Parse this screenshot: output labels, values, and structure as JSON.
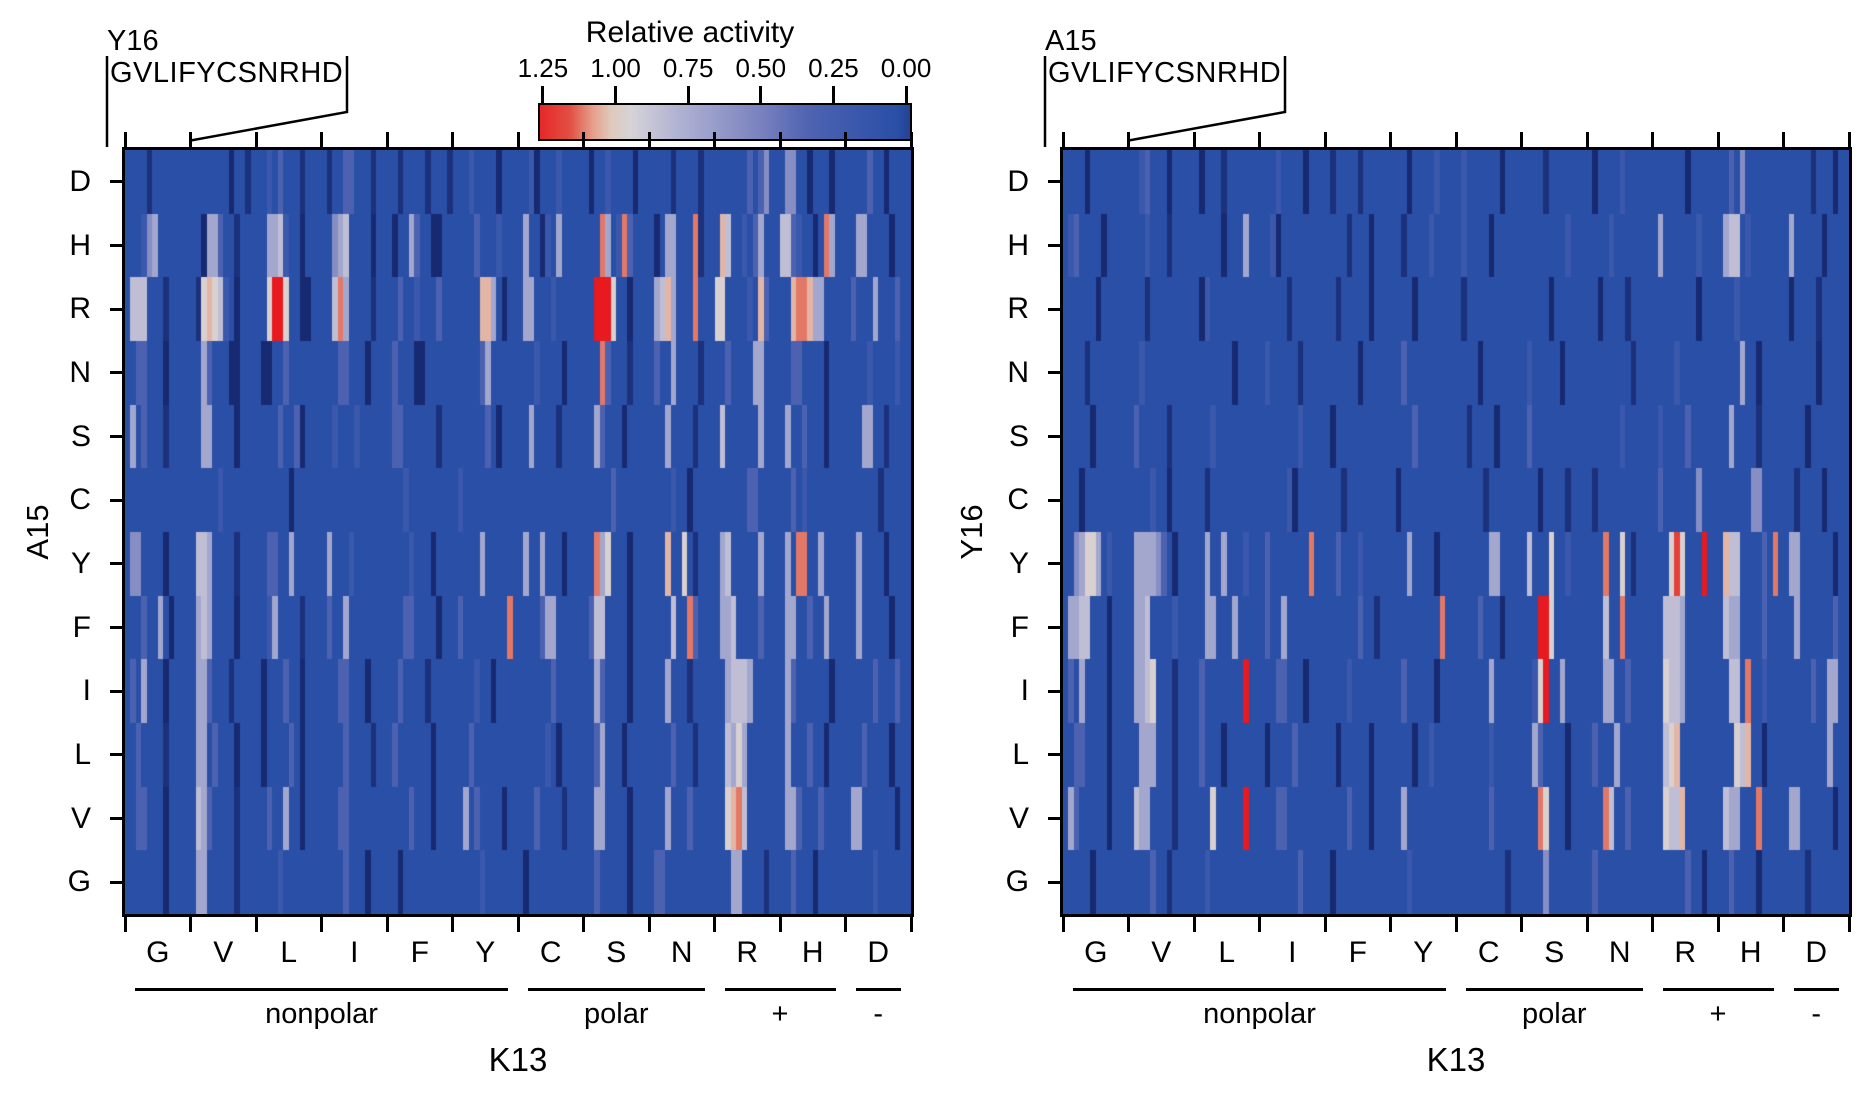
{
  "chart_data": {
    "type": "heatmap",
    "colorbar": {
      "title": "Relative activity",
      "tick_labels": [
        "1.25",
        "1.00",
        "0.75",
        "0.50",
        "0.25",
        "0.00"
      ],
      "tick_values": [
        1.25,
        1.0,
        0.75,
        0.5,
        0.25,
        0.0
      ],
      "orientation": "high-red at left, low-blue at right",
      "range_max": 1.26
    },
    "colormap_stops": [
      [
        -0.2,
        "#16276E"
      ],
      [
        -0.05,
        "#1E3380"
      ],
      [
        0.04,
        "#2A4FA6"
      ],
      [
        0.2,
        "#3C59AD"
      ],
      [
        0.35,
        "#5064B2"
      ],
      [
        0.5,
        "#7880BE"
      ],
      [
        0.65,
        "#959BC9"
      ],
      [
        0.8,
        "#B3B4D4"
      ],
      [
        0.95,
        "#D6D3D8"
      ],
      [
        1.02,
        "#DFC9BC"
      ],
      [
        1.08,
        "#E6A08C"
      ],
      [
        1.16,
        "#E25043"
      ],
      [
        1.3,
        "#E8191F"
      ]
    ],
    "cell_value_code": {
      ".": 0.04,
      "1": -0.18,
      "2": -0.08,
      "3": 0.18,
      "4": 0.32,
      "5": 0.45,
      "6": 0.58,
      "7": 0.72,
      "8": 0.85,
      "9": 0.97,
      "a": 1.05,
      "b": 1.12,
      "c": 1.2,
      "d": 1.3
    },
    "x": {
      "title": "K13",
      "letters": [
        "G",
        "V",
        "L",
        "I",
        "F",
        "Y",
        "C",
        "S",
        "N",
        "R",
        "H",
        "D"
      ],
      "groups": [
        {
          "label": "nonpolar",
          "from_col": 0,
          "to_col": 5
        },
        {
          "label": "polar",
          "from_col": 6,
          "to_col": 8
        },
        {
          "label": "+",
          "from_col": 9,
          "to_col": 10
        },
        {
          "label": "-",
          "from_col": 11,
          "to_col": 11
        }
      ]
    },
    "panels": [
      {
        "y_axis_title": "A15",
        "header": {
          "position_label": "Y16",
          "sequence": "GVLIFYCSNRHD"
        },
        "rows": [
          {
            "letter": "D",
            "blocks": [
              "....2.......",
              ".......1..2.",
              "..3.4...2...",
              ".2..44...2..",
              "..2....2...2",
              "...3....1...",
              "..31...3....",
              ".1..3....1..",
              "....2....2..",
              "......4.46..",
              ".66..1...1..",
              "....4..1...."
            ]
          },
          {
            "letter": "H",
            "blocks": [
              "...367......",
              "..1774..2...",
              "..7783..1...",
              "..678....1..",
              ".1..74..11..",
              "....4...3...",
              ".7..13.7....",
              "...b7.3b4...",
              ".1.77...b2..",
              ".a8..3.47...",
              "8843..1.b7..",
              "..77....1..."
            ]
          },
          {
            "letter": "R",
            "blocks": [
              ".888...2....",
              ".29a983.1...",
              "..9dd9..11..",
              "..8b7....2..",
              "..4..3...4..",
              ".....aa7.1..",
              ".77...3.....",
              "..ddd9..1...",
              ".78a7...b...",
              "99....3.a4..",
              "..abba77....",
              ".4...7...4.."
            ]
          },
          {
            "letter": "N",
            "blocks": [
              "..44...1....",
              "..74...11...",
              ".11..4......",
              "...44...1...",
              ".4...11.....",
              ".....47.....",
              "...3....1...",
              "...b4...2...",
              ".4..7....2..",
              "..4....77...",
              "..44....1...",
              "....3....3.."
            ]
          },
          {
            "letter": "S",
            "blocks": [
              ".7.4...2....",
              "..77....1...",
              "....4..41...",
              "..3...3.....",
              ".44......2..",
              "......4.1...",
              "..7....2....",
              "..74...1....",
              "...7....2...",
              ".8......7...",
              ".7..4...1...",
              "...77..2...."
            ]
          },
          {
            "letter": "C",
            "blocks": [
              "............",
              ".....3......",
              "......1.....",
              "............",
              "...3........",
              ".3..........",
              "............",
              ".....4......",
              "....3..1....",
              "......44....",
              "..4.3.......",
              "......2....."
            ]
          },
          {
            "letter": "Y",
            "blocks": [
              ".66....1....",
              ".887....2...",
              "..44..7.....",
              ".7...3......",
              "....3...1...",
              ".....7......",
              ".7..7...1...",
              "..b79...1...",
              "...a..9.2...",
              ".78.....7...",
              ".7.bb..7....",
              "..7....1...."
            ]
          },
          {
            "letter": "F",
            "blocks": [
              "...4..7.1...",
              ".787....1...",
              "..37....2...",
              ".4..7.......",
              "...44....1..",
              ".4........b.",
              "....477.....",
              ".488....1...",
              "....8..b4...",
              ".778....4...",
              ".77..4..7...",
              "..7.....1..."
            ]
          },
          {
            "letter": "I",
            "blocks": [
              ".4.7...1....",
              ".774...2....",
              ".1...4..1...",
              "...44...1...",
              "..4....2....",
              "....3..1....",
              "......4.....",
              "..74....1...",
              "...7...2....",
              "..78887.....",
              ".74......1..",
              ".....4...4.."
            ]
          },
          {
            "letter": "L",
            "blocks": [
              "..4....2....",
              ".77.4...1...",
              ".1....4.1...",
              "....4....2..",
              ".4......1...",
              "...4........",
              ".....3.1....",
              "..47...1....",
              "....4...2...",
              "..8797......",
              ".7...4..1...",
              "...4....1..."
            ]
          },
          {
            "letter": "V",
            "blocks": [
              "..44...1....",
              ".874....2...",
              "..4..7..1...",
              "...44.......",
              "....4...1...",
              "..7.4....1..",
              "...4....2...",
              "..77....1...",
              "...7...4....",
              "..9ab8......",
              ".774...4....",
              ".77......1.."
            ]
          },
          {
            "letter": "G",
            "blocks": [
              ".......1....",
              ".77.....2...",
              "....3.......",
              "....4...1...",
              "..1.........",
              ".....3......",
              ".1..........",
              "..4.....1...",
              ".44.........",
              "...77....2..",
              "..4...1.....",
              ".....3......"
            ]
          }
        ]
      },
      {
        "y_axis_title": "Y16",
        "header": {
          "position_label": "A15",
          "sequence": "GVLIFYCSNRHD"
        },
        "rows": [
          {
            "letter": "D",
            "blocks": [
              "....1.......",
              "..34...1....",
              ".1...2......",
              "...3....1...",
              ".2....2.....",
              "...1....3...",
              ".3......1...",
              "....2.......",
              ".1....3.....",
              "......1.....",
              "..4.6.......",
              ".....2...1.."
            ]
          },
          {
            "letter": "H",
            "blocks": [
              ".34....1....",
              "...3...2....",
              ".....1...7..",
              "..31........",
              "....2...1...",
              "..2....3....",
              ".3....1.....",
              "........3...",
              "....3.......",
              ".7......3...",
              ".788.3......",
              ".7.....1...."
            ]
          },
          {
            "letter": "R",
            "blocks": [
              "......1.....",
              "...2........",
              ".13.........",
              ".....2......",
              "..2.....1...",
              "....1.......",
              ".2..........",
              ".....1......",
              "..1....2....",
              "........1...",
              "...3........",
              ".1....2....."
            ]
          },
          {
            "letter": "N",
            "blocks": [
              "....2.......",
              "..3.........",
              ".......1....",
              ".3.....2....",
              "......1.....",
              "..4.........",
              "....1.......",
              ".3.....1....",
              "........2...",
              "....3.......",
              "....7..1....",
              "......1....."
            ]
          },
          {
            "letter": "S",
            "blocks": [
              ".....1......",
              ".4.....2....",
              "...3........",
              ".......3....",
              ".1..........",
              "....4.......",
              "..2....1....",
              ".4..........",
              "......3.....",
              ".3....4.....",
              "..7....2....",
              "....1......."
            ]
          },
          {
            "letter": "C",
            "blocks": [
              "...1........",
              "....3..1....",
              "..2.........",
              ".....31.....",
              "...2........",
              ".1..........",
              ".....2......",
              "...1....2...",
              ".2..........",
              ".4......6...",
              "......66....",
              "..2....1...."
            ]
          },
          {
            "letter": "Y",
            "blocks": [
              "..67997.3...",
              ".777764.1...",
              "..7..7...3..",
              ".4.......b..",
              "..4...3.....",
              "...7....1...",
              "......77....",
              ".8...9..3...",
              "...b..9.2...",
              "...9c9...d..",
              ".a88....4.b.",
              ".77......1.."
            ]
          },
          {
            "letter": "F",
            "blocks": [
              ".7788...1...",
              ".778....3...",
              "..77...7....",
              ".4..7.......",
              "......4..2..",
              ".........b..",
              "....4...1...",
              "...dd9......",
              "...8..b.....",
              "..8887......",
              ".877....4...",
              "..7......4.."
            ]
          },
          {
            "letter": "I",
            "blocks": [
              ".4.7....1...",
              ".7789...2...",
              ".4.......d..",
              "...44...1...",
              "....3.......",
              "..4.....1...",
              "......7.....",
              "..39d..7....",
              "...77..4....",
              "..9887......",
              "..88.b..3...",
              ".....4..77.."
            ]
          },
          {
            "letter": "L",
            "blocks": [
              "..44....1...",
              "..777...2...",
              ".4...1......",
              ".1....4.....",
              "..1.....1...",
              "....1..3....",
              "......3.....",
              "..74....1...",
              ".4...7......",
              "..89a.......",
              "...98a..1...",
              "........7..."
            ]
          },
          {
            "letter": "V",
            "blocks": [
              ".74.....1...",
              ".877....2...",
              "...9.....d..",
              "...44.......",
              "....4...1...",
              "..7.........",
              "......4.....",
              "...b9...1...",
              "...b8..4....",
              "..988a......",
              ".877...b....",
              ".77......1.."
            ]
          },
          {
            "letter": "G",
            "blocks": [
              ".....1......",
              "....4..2....",
              "..3.........",
              ".......4....",
              ".1..........",
              "...3........",
              ".........2..",
              "....6.......",
              ".4..........",
              "......4..1..",
              "..4....1....",
              "....2......."
            ]
          }
        ]
      }
    ]
  }
}
